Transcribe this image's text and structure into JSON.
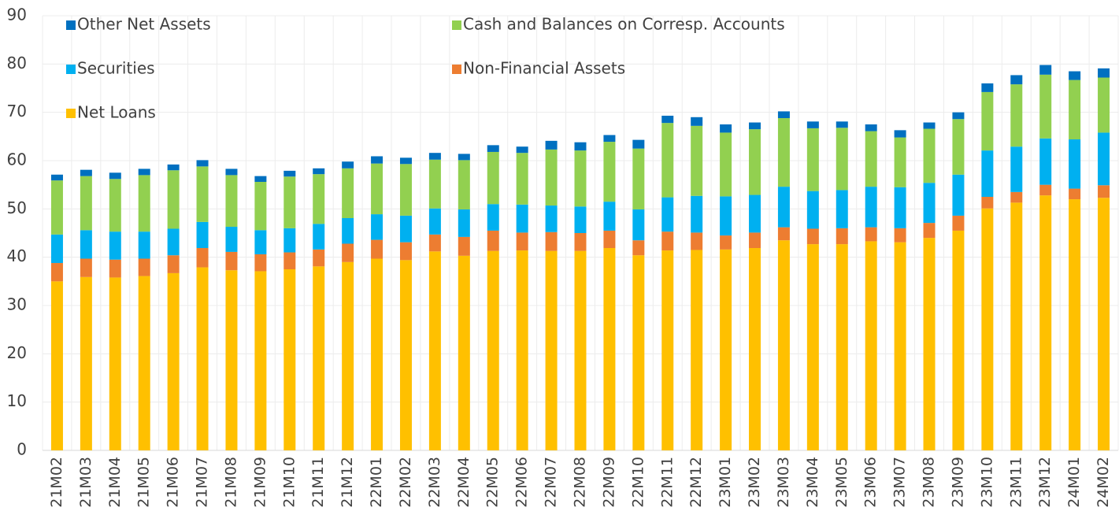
{
  "chart_data": {
    "type": "stacked_bar",
    "categories": [
      "21M02",
      "21M03",
      "21M04",
      "21M05",
      "21M06",
      "21M07",
      "21M08",
      "21M09",
      "21M10",
      "21M11",
      "21M12",
      "22M01",
      "22M02",
      "22M03",
      "22M04",
      "22M05",
      "22M06",
      "22M07",
      "22M08",
      "22M09",
      "22M10",
      "22M11",
      "22M12",
      "23M01",
      "23M02",
      "23M03",
      "23M04",
      "23M05",
      "23M06",
      "23M07",
      "23M08",
      "23M09",
      "23M10",
      "23M11",
      "23M12",
      "24M01",
      "24M02"
    ],
    "series": [
      {
        "name": "Net Loans",
        "color": "#FFC000",
        "values": [
          35.0,
          35.9,
          35.8,
          36.1,
          36.7,
          37.9,
          37.3,
          37.1,
          37.5,
          38.1,
          39.0,
          39.7,
          39.4,
          41.2,
          40.3,
          41.3,
          41.4,
          41.3,
          41.3,
          41.9,
          40.4,
          41.4,
          41.5,
          41.6,
          41.9,
          43.5,
          42.7,
          42.7,
          43.3,
          43.1,
          44.0,
          45.5,
          50.1,
          51.3,
          52.8,
          52.0,
          52.3
        ]
      },
      {
        "name": "Non-Financial Assets",
        "color": "#ED7D31",
        "values": [
          3.8,
          3.8,
          3.7,
          3.6,
          3.7,
          4.0,
          3.8,
          3.5,
          3.5,
          3.5,
          3.8,
          3.9,
          3.7,
          3.5,
          3.9,
          4.2,
          3.7,
          3.9,
          3.7,
          3.6,
          3.1,
          3.9,
          3.6,
          2.9,
          3.2,
          2.7,
          3.2,
          3.3,
          2.9,
          2.9,
          3.1,
          3.1,
          2.4,
          2.2,
          2.2,
          2.2,
          2.6
        ]
      },
      {
        "name": "Securities",
        "color": "#00B0F0",
        "values": [
          5.9,
          5.9,
          5.8,
          5.6,
          5.5,
          5.4,
          5.2,
          5.0,
          5.0,
          5.3,
          5.3,
          5.3,
          5.5,
          5.4,
          5.7,
          5.5,
          5.8,
          5.5,
          5.5,
          6.0,
          6.4,
          7.1,
          7.6,
          8.1,
          7.8,
          8.4,
          7.8,
          7.9,
          8.4,
          8.5,
          8.3,
          8.5,
          9.6,
          9.4,
          9.6,
          10.2,
          10.9
        ]
      },
      {
        "name": "Cash and Balances on Corresp. Accounts",
        "color": "#92D050",
        "values": [
          11.2,
          11.2,
          10.9,
          11.7,
          12.1,
          11.5,
          10.7,
          10.0,
          10.7,
          10.3,
          10.3,
          10.5,
          10.7,
          10.1,
          10.2,
          10.8,
          10.7,
          11.6,
          11.6,
          12.4,
          12.6,
          15.4,
          14.5,
          13.2,
          13.6,
          14.2,
          13.0,
          12.9,
          11.5,
          10.3,
          11.2,
          11.5,
          12.1,
          12.9,
          13.2,
          12.3,
          11.4
        ]
      },
      {
        "name": "Other Net Assets",
        "color": "#0070C0",
        "values": [
          1.2,
          1.3,
          1.3,
          1.3,
          1.2,
          1.3,
          1.3,
          1.2,
          1.2,
          1.2,
          1.4,
          1.5,
          1.3,
          1.4,
          1.3,
          1.4,
          1.3,
          1.8,
          1.7,
          1.4,
          1.8,
          1.5,
          1.8,
          1.7,
          1.4,
          1.4,
          1.4,
          1.3,
          1.4,
          1.5,
          1.3,
          1.4,
          1.8,
          1.9,
          2.0,
          1.8,
          1.9
        ]
      }
    ],
    "ylim": [
      0,
      90
    ],
    "yticks": [
      0,
      10,
      20,
      30,
      40,
      50,
      60,
      70,
      80,
      90
    ],
    "grid": true
  }
}
